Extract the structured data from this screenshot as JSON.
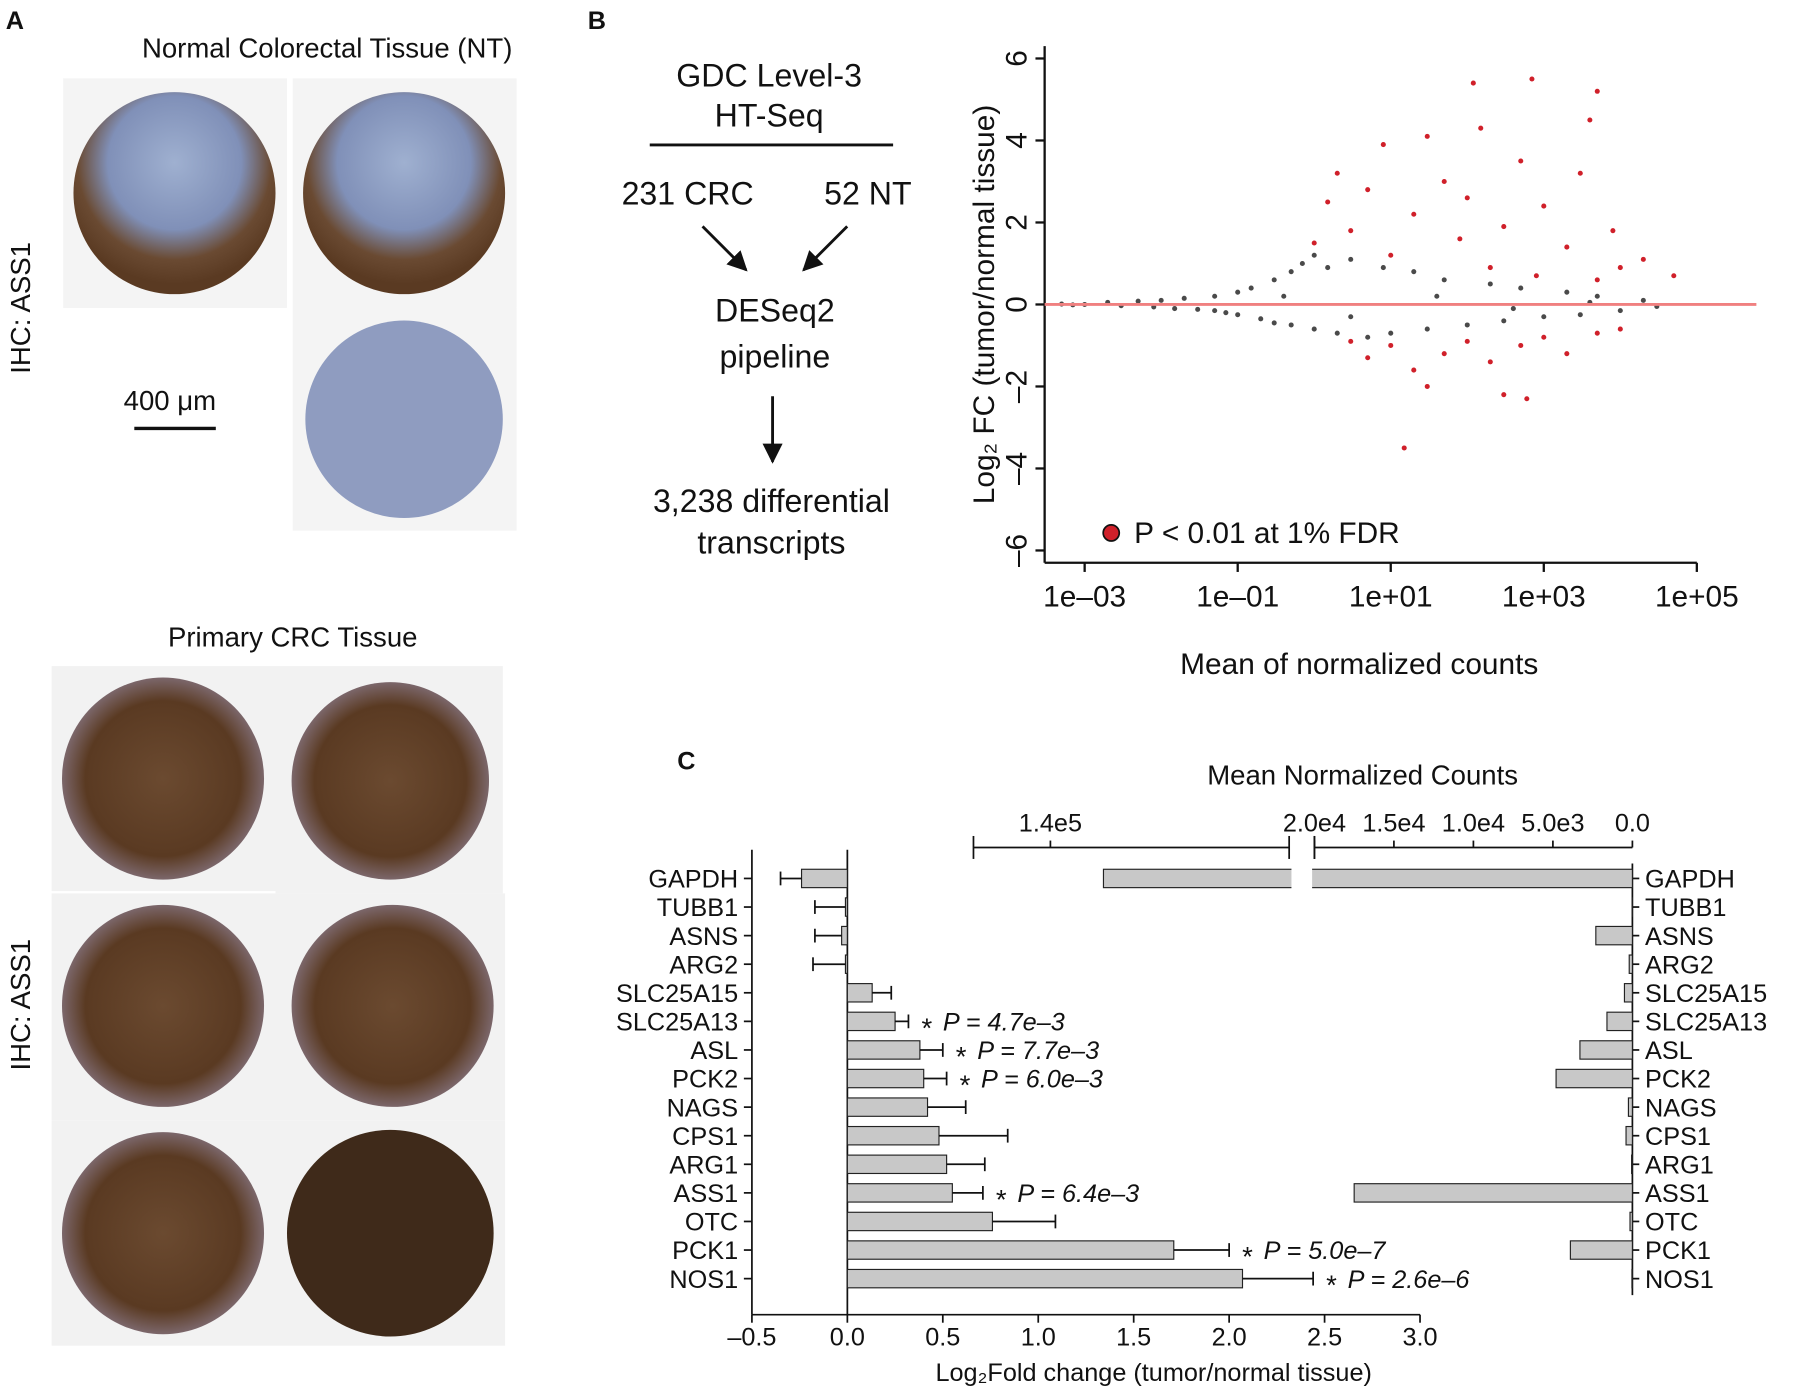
{
  "panel_labels": [
    "A",
    "B",
    "C"
  ],
  "panel_a": {
    "normal_title": "Normal Colorectal Tissue (NT)",
    "tumor_title": "Primary CRC Tissue",
    "stain_label": "IHC: ASS1",
    "scale_bar": "400 μm"
  },
  "flowchart": {
    "source_line1": "GDC Level-3",
    "source_line2": "HT-Seq",
    "left_group": "231 CRC",
    "right_group": "52 NT",
    "pipeline_line1": "DESeq2",
    "pipeline_line2": "pipeline",
    "result_line1": "3,238 differential",
    "result_line2": "transcripts"
  },
  "chart_data": [
    {
      "type": "scatter",
      "xlabel": "Mean of normalized counts",
      "ylabel": "Log₂ FC (tumor/normal tissue)",
      "x_log": true,
      "xlim": [
        0.0003,
        600000
      ],
      "ylim": [
        -6.3,
        6.3
      ],
      "xticks": [
        {
          "value": 0.001,
          "label": "1e–03"
        },
        {
          "value": 0.1,
          "label": "1e–01"
        },
        {
          "value": 10,
          "label": "1e+01"
        },
        {
          "value": 1000,
          "label": "1e+03"
        },
        {
          "value": 100000,
          "label": "1e+05"
        }
      ],
      "yticks": [
        {
          "value": -6,
          "label": "–6"
        },
        {
          "value": -4,
          "label": "–4"
        },
        {
          "value": -2,
          "label": "–2"
        },
        0,
        2,
        4,
        6
      ],
      "hline": 0,
      "hline_color": "#f08080",
      "series": [
        {
          "color": "#4a4a4a",
          "x": [
            0.001,
            0.002,
            0.003,
            0.005,
            0.008,
            0.01,
            0.015,
            0.02,
            0.03,
            0.05,
            0.07,
            0.1,
            0.1,
            0.15,
            0.2,
            0.3,
            0.3,
            0.5,
            0.5,
            0.7,
            1,
            1,
            1.5,
            2,
            3,
            5,
            8,
            10,
            20,
            30,
            50,
            100,
            200,
            300,
            500,
            1000,
            2000,
            3000,
            5000,
            10000,
            20000,
            0.0005,
            0.0007,
            0.05,
            0.4,
            3,
            40,
            400,
            4000,
            30000
          ],
          "values": [
            0,
            0.05,
            -0.03,
            0.08,
            -0.06,
            0.1,
            -0.1,
            0.15,
            -0.12,
            0.2,
            -0.2,
            0.3,
            -0.25,
            0.4,
            -0.35,
            0.6,
            -0.45,
            0.8,
            -0.5,
            1.0,
            1.2,
            -0.6,
            0.9,
            -0.7,
            1.1,
            -0.8,
            0.9,
            -0.7,
            0.8,
            -0.6,
            0.6,
            -0.5,
            0.5,
            -0.4,
            0.4,
            -0.3,
            0.3,
            -0.25,
            0.2,
            -0.15,
            0.1,
            0.01,
            -0.01,
            -0.15,
            0.2,
            -0.3,
            0.2,
            -0.1,
            0.05,
            -0.05
          ]
        },
        {
          "name": "P < 0.01 at 1% FDR",
          "color": "#d0202a",
          "x": [
            1,
            1.5,
            2,
            3,
            5,
            8,
            10,
            20,
            30,
            50,
            80,
            100,
            150,
            200,
            300,
            500,
            700,
            800,
            1000,
            2000,
            3000,
            5000,
            5000,
            8000,
            10000,
            20000,
            50000,
            3,
            5,
            10,
            20,
            30,
            50,
            100,
            200,
            300,
            500,
            1000,
            2000,
            5000,
            10000,
            15,
            600,
            120,
            4000
          ],
          "values": [
            1.5,
            2.5,
            3.2,
            1.8,
            2.8,
            3.9,
            1.2,
            2.2,
            4.1,
            3.0,
            1.6,
            2.6,
            4.3,
            0.9,
            1.9,
            3.5,
            5.5,
            0.7,
            2.4,
            1.4,
            3.2,
            5.2,
            0.6,
            1.8,
            0.9,
            1.1,
            0.7,
            -0.9,
            -1.3,
            -1.0,
            -1.6,
            -2.0,
            -1.2,
            -0.9,
            -1.4,
            -2.2,
            -1.0,
            -0.8,
            -1.2,
            -0.7,
            -0.6,
            -3.5,
            -2.3,
            5.4,
            4.5
          ]
        }
      ]
    },
    {
      "type": "bar",
      "orientation": "horizontal",
      "xlabel": "Log₂Fold change (tumor/normal tissue)",
      "color": "#c8c8c8",
      "categories": [
        "GAPDH",
        "TUBB1",
        "ASNS",
        "ARG2",
        "SLC25A15",
        "SLC25A13",
        "ASL",
        "PCK2",
        "NAGS",
        "CPS1",
        "ARG1",
        "ASS1",
        "OTC",
        "PCK1",
        "NOS1"
      ],
      "values": [
        -0.24,
        -0.01,
        -0.03,
        -0.01,
        0.13,
        0.25,
        0.38,
        0.4,
        0.42,
        0.48,
        0.52,
        0.55,
        0.76,
        1.71,
        2.07
      ],
      "errors": [
        0.11,
        0.16,
        0.14,
        0.17,
        0.1,
        0.07,
        0.12,
        0.12,
        0.2,
        0.36,
        0.2,
        0.16,
        0.33,
        0.29,
        0.37
      ],
      "significance_marker": "*",
      "p_values": [
        null,
        null,
        null,
        null,
        null,
        "P = 4.7e–3",
        "P = 7.7e–3",
        "P = 6.0e–3",
        null,
        null,
        null,
        "P = 6.4e–3",
        null,
        "P = 5.0e–7",
        "P = 2.6e–6"
      ],
      "xlim": [
        -0.5,
        3.0
      ],
      "xticks": [
        {
          "value": -0.5,
          "label": "–0.5"
        },
        {
          "value": 0,
          "label": "0.0"
        },
        0.5,
        {
          "value": 1,
          "label": "1.0"
        },
        1.5,
        {
          "value": 2,
          "label": "2.0"
        },
        2.5,
        {
          "value": 3,
          "label": "3.0"
        }
      ]
    },
    {
      "type": "bar",
      "orientation": "horizontal",
      "title": "Mean Normalized Counts",
      "color": "#c8c8c8",
      "x_reversed": true,
      "axis_break": true,
      "categories": [
        "GAPDH",
        "TUBB1",
        "ASNS",
        "ARG2",
        "SLC25A15",
        "SLC25A13",
        "ASL",
        "PCK2",
        "NAGS",
        "CPS1",
        "ARG1",
        "ASS1",
        "OTC",
        "PCK1",
        "NOS1"
      ],
      "values": [
        120000,
        20,
        2300,
        200,
        500,
        1600,
        3300,
        4800,
        250,
        400,
        50,
        17500,
        150,
        3900,
        30
      ],
      "xlim_segments": [
        [
          0,
          20000
        ],
        [
          50000,
          169000
        ]
      ],
      "xticks": [
        {
          "value": 140000,
          "label": "1.4e5"
        },
        {
          "value": 20000,
          "label": "2.0e4"
        },
        {
          "value": 15000,
          "label": "1.5e4"
        },
        {
          "value": 10000,
          "label": "1.0e4"
        },
        {
          "value": 5000,
          "label": "5.0e3"
        },
        {
          "value": 0,
          "label": "0.0"
        }
      ]
    }
  ]
}
